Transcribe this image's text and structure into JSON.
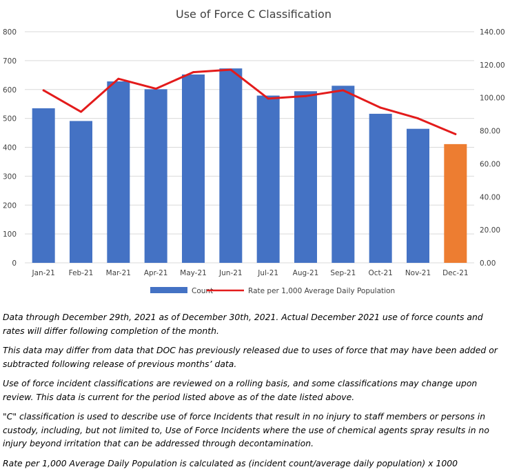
{
  "chart_data": {
    "type": "bar+line",
    "title": "Use of Force C Classification",
    "categories": [
      "Jan-21",
      "Feb-21",
      "Mar-21",
      "Apr-21",
      "May-21",
      "Jun-21",
      "Jul-21",
      "Aug-21",
      "Sep-21",
      "Oct-21",
      "Nov-21",
      "Dec-21"
    ],
    "series": [
      {
        "name": "Count",
        "type": "bar",
        "axis": "left",
        "values": [
          535,
          491,
          628,
          601,
          652,
          673,
          579,
          594,
          613,
          516,
          464,
          411
        ],
        "color": "#4472C4",
        "highlight": {
          "index": 11,
          "color": "#ED7D31"
        }
      },
      {
        "name": "Rate per 1,000 Average Daily Population",
        "type": "line",
        "axis": "right",
        "values": [
          104.5,
          91.5,
          111.5,
          105.5,
          115.5,
          117,
          99.5,
          101,
          104.5,
          94,
          87.5,
          78
        ],
        "color": "#E31B1B"
      }
    ],
    "y_left": {
      "lim": [
        0,
        800
      ],
      "ticks": [
        "0",
        "100",
        "200",
        "300",
        "400",
        "500",
        "600",
        "700",
        "800"
      ]
    },
    "y_right": {
      "lim": [
        0,
        140
      ],
      "ticks": [
        "0.00",
        "20.00",
        "40.00",
        "60.00",
        "80.00",
        "100.00",
        "120.00",
        "140.00"
      ]
    },
    "grid": true,
    "legend": "bottom"
  },
  "notes": [
    "Data through December 29th, 2021 as of December 30th, 2021. Actual December 2021 use of force counts and rates will differ following completion of the month.",
    "This data may differ from data that DOC has previously released due to uses of force that may have been added or subtracted following release of previous months’ data.",
    "Use of force incident classifications are reviewed on a rolling basis, and some  classifications may change upon review. This data is current for the period listed above as of the date listed above.",
    "\"C\" classification is used to describe use of force Incidents that result in no injury to staff members or persons in custody, including, but not limited to, Use of Force Incidents where the use of chemical agents spray results in no injury beyond irritation that can be addressed through decontamination.",
    "Rate per 1,000 Average Daily Population is calculated as (incident count/average daily population) x 1000"
  ]
}
